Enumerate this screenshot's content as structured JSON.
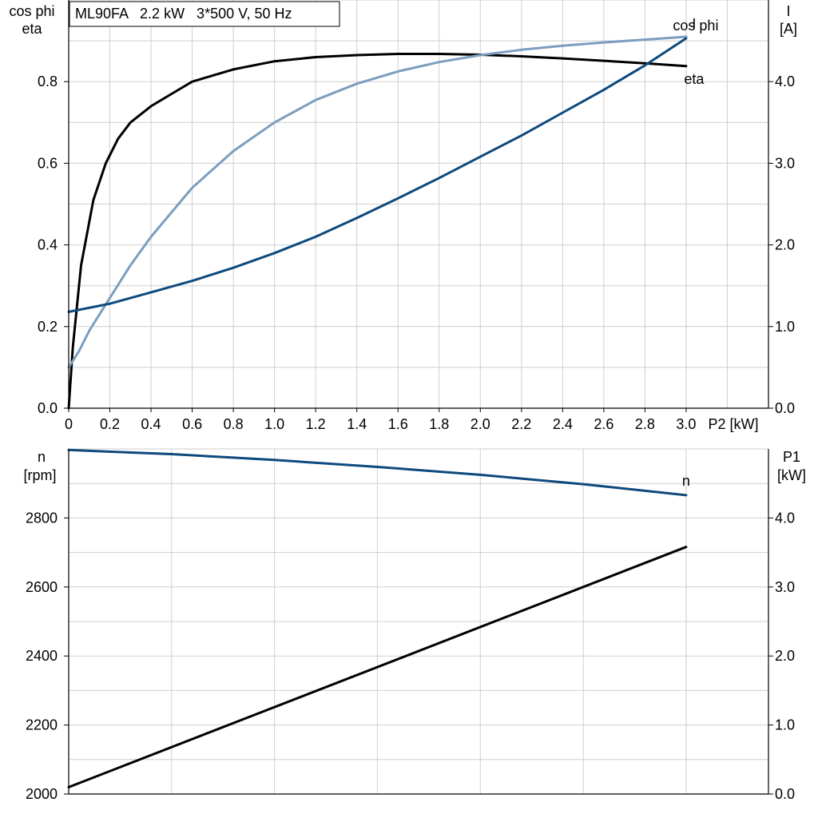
{
  "legend": "ML90FA   2.2 kW   3*500 V, 50 Hz",
  "colors": {
    "eta": "#000000",
    "cos_phi": "#7b9ebf",
    "current": "#0d497c",
    "speed": "#0d497c",
    "p1": "#000000",
    "grid": "#cfcfcf"
  },
  "chart_data": [
    {
      "type": "line",
      "title": "",
      "xlabel": "P2 [kW]",
      "xlim": [
        0,
        3.4
      ],
      "x_ticks": [
        "0",
        "0.2",
        "0.4",
        "0.6",
        "0.8",
        "1.0",
        "1.2",
        "1.4",
        "1.6",
        "1.8",
        "2.0",
        "2.2",
        "2.4",
        "2.6",
        "2.8",
        "3.0"
      ],
      "x_tick_values": [
        0,
        0.2,
        0.4,
        0.6,
        0.8,
        1.0,
        1.2,
        1.4,
        1.6,
        1.8,
        2.0,
        2.2,
        2.4,
        2.6,
        2.8,
        3.0
      ],
      "ylabel_left": [
        "cos phi",
        "eta"
      ],
      "ylim_left": [
        0,
        1.0
      ],
      "y_ticks_left": [
        "0.0",
        "0.2",
        "0.4",
        "0.6",
        "0.8"
      ],
      "y_tick_values_left": [
        0,
        0.2,
        0.4,
        0.6,
        0.8
      ],
      "ylabel_right": [
        "I",
        "[A]"
      ],
      "ylim_right": [
        0,
        5.0
      ],
      "y_ticks_right": [
        "0.0",
        "1.0",
        "2.0",
        "3.0",
        "4.0"
      ],
      "y_tick_values_right": [
        0,
        1.0,
        2.0,
        3.0,
        4.0
      ],
      "grid": true,
      "series": [
        {
          "name": "eta",
          "axis": "left",
          "color": "#000000",
          "x": [
            0,
            0.02,
            0.06,
            0.12,
            0.18,
            0.24,
            0.3,
            0.4,
            0.5,
            0.6,
            0.8,
            1.0,
            1.2,
            1.4,
            1.6,
            1.8,
            2.0,
            2.2,
            2.4,
            2.6,
            2.8,
            3.0
          ],
          "y": [
            0,
            0.15,
            0.35,
            0.51,
            0.6,
            0.66,
            0.7,
            0.74,
            0.77,
            0.8,
            0.83,
            0.85,
            0.86,
            0.865,
            0.868,
            0.868,
            0.866,
            0.862,
            0.857,
            0.851,
            0.845,
            0.838
          ]
        },
        {
          "name": "cos phi",
          "axis": "left",
          "color": "#7b9ebf",
          "x": [
            0,
            0.05,
            0.1,
            0.15,
            0.2,
            0.3,
            0.4,
            0.5,
            0.6,
            0.8,
            1.0,
            1.2,
            1.4,
            1.6,
            1.8,
            2.0,
            2.2,
            2.4,
            2.6,
            2.8,
            3.0
          ],
          "y": [
            0.1,
            0.14,
            0.19,
            0.23,
            0.27,
            0.35,
            0.42,
            0.48,
            0.54,
            0.63,
            0.7,
            0.755,
            0.795,
            0.825,
            0.848,
            0.865,
            0.878,
            0.888,
            0.896,
            0.903,
            0.91
          ]
        },
        {
          "name": "I",
          "axis": "right",
          "color": "#0d497c",
          "x": [
            0,
            0.2,
            0.4,
            0.6,
            0.8,
            1.0,
            1.2,
            1.4,
            1.6,
            1.8,
            2.0,
            2.2,
            2.4,
            2.6,
            2.8,
            3.0
          ],
          "y": [
            1.18,
            1.28,
            1.42,
            1.56,
            1.72,
            1.9,
            2.1,
            2.33,
            2.57,
            2.82,
            3.08,
            3.34,
            3.62,
            3.9,
            4.2,
            4.53
          ]
        }
      ]
    },
    {
      "type": "line",
      "title": "",
      "xlabel": "",
      "xlim": [
        0,
        3.4
      ],
      "ylabel_left": [
        "n",
        "[rpm]"
      ],
      "ylim_left": [
        2000,
        3000
      ],
      "y_ticks_left": [
        "2000",
        "2200",
        "2400",
        "2600",
        "2800"
      ],
      "y_tick_values_left": [
        2000,
        2200,
        2400,
        2600,
        2800
      ],
      "ylabel_right": [
        "P1",
        "[kW]"
      ],
      "ylim_right": [
        0,
        5.0
      ],
      "y_ticks_right": [
        "0.0",
        "1.0",
        "2.0",
        "3.0",
        "4.0"
      ],
      "y_tick_values_right": [
        0,
        1.0,
        2.0,
        3.0,
        4.0
      ],
      "grid": true,
      "series": [
        {
          "name": "n",
          "axis": "left",
          "color": "#0d497c",
          "x": [
            0,
            0.5,
            1.0,
            1.5,
            2.0,
            2.5,
            3.0
          ],
          "y": [
            2997,
            2985,
            2968,
            2948,
            2925,
            2898,
            2866
          ]
        },
        {
          "name": "",
          "axis": "right",
          "color": "#000000",
          "x": [
            0,
            3.0
          ],
          "y": [
            0.1,
            3.58
          ]
        }
      ]
    }
  ]
}
